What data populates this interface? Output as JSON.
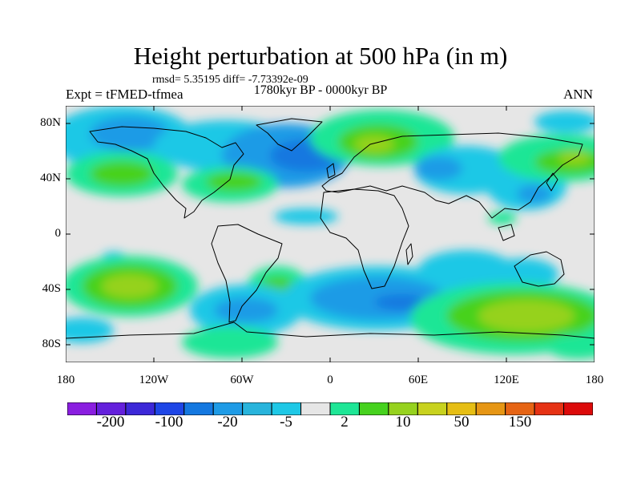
{
  "title": "Height perturbation at 500 hPa (in m)",
  "stats": "rmsd= 5.35195  diff= -7.73392e-09",
  "left_label": "Expt = tFMED-tfmea",
  "center_label": "1780kyr BP - 0000kyr BP",
  "right_label": "ANN",
  "lat_ticks": [
    "80N",
    "40N",
    "0",
    "40S",
    "80S"
  ],
  "lon_ticks": [
    "180",
    "120W",
    "60W",
    "0",
    "60E",
    "120E",
    "180"
  ],
  "colorbar": {
    "colors": [
      "#8a1ee0",
      "#6420dc",
      "#3c28d8",
      "#1e46e6",
      "#1478e0",
      "#1e9be6",
      "#28b4dc",
      "#1ec8e6",
      "#e6e6e6",
      "#1ee696",
      "#46d21e",
      "#96d21e",
      "#c8d21e",
      "#e6be14",
      "#e69614",
      "#e66414",
      "#e63214",
      "#dc0a0a"
    ],
    "labels": [
      "-200",
      "-100",
      "-20",
      "-5",
      "2",
      "10",
      "50",
      "150"
    ]
  },
  "colors": {
    "background": "#ffffff",
    "no_change": "#e6e6e6"
  }
}
